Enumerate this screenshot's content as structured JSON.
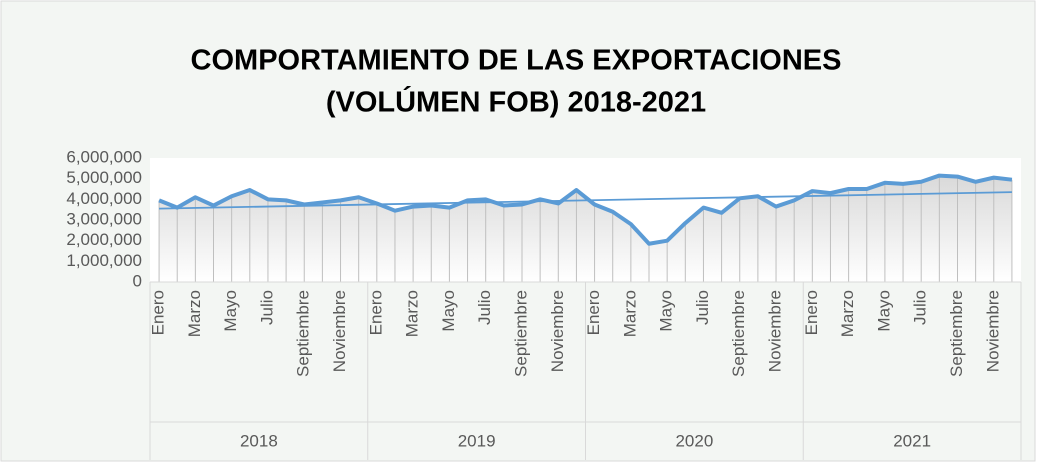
{
  "chart_data": {
    "type": "line",
    "title": [
      "COMPORTAMIENTO DE LAS EXPORTACIONES",
      "(VOLÚMEN FOB) 2018-2021"
    ],
    "categories": [
      "Enero",
      null,
      "Marzo",
      null,
      "Mayo",
      null,
      "Julio",
      null,
      "Septiembre",
      null,
      "Noviembre",
      null,
      "Enero",
      null,
      "Marzo",
      null,
      "Mayo",
      null,
      "Julio",
      null,
      "Septiembre",
      null,
      "Noviembre",
      null,
      "Enero",
      null,
      "Marzo",
      null,
      "Mayo",
      null,
      "Julio",
      null,
      "Septiembre",
      null,
      "Noviembre",
      null,
      "Enero",
      null,
      "Marzo",
      null,
      "Mayo",
      null,
      "Julio",
      null,
      "Septiembre",
      null,
      "Noviembre",
      null
    ],
    "groups": [
      "2018",
      "2019",
      "2020",
      "2021"
    ],
    "series": [
      {
        "color": "#5b9bd5",
        "values": [
          3950000,
          3600000,
          4100000,
          3700000,
          4150000,
          4450000,
          4000000,
          3950000,
          3750000,
          3850000,
          3950000,
          4100000,
          3800000,
          3450000,
          3650000,
          3700000,
          3600000,
          3950000,
          4000000,
          3700000,
          3750000,
          4000000,
          3800000,
          4450000,
          3750000,
          3400000,
          2800000,
          1850000,
          2000000,
          2850000,
          3600000,
          3350000,
          4050000,
          4150000,
          3650000,
          3950000,
          4400000,
          4300000,
          4500000,
          4500000,
          4800000,
          4750000,
          4850000,
          5150000,
          5100000,
          4850000,
          5050000,
          4950000
        ]
      }
    ],
    "trendline": [
      3550000,
      4350000
    ],
    "ylim": [
      0,
      6000000
    ],
    "yticks": [
      {
        "value": 0,
        "label": "0"
      },
      {
        "value": 1000000,
        "label": "1,000,000"
      },
      {
        "value": 2000000,
        "label": "2,000,000"
      },
      {
        "value": 3000000,
        "label": "3,000,000"
      },
      {
        "value": 4000000,
        "label": "4,000,000"
      },
      {
        "value": 5000000,
        "label": "5,000,000"
      },
      {
        "value": 6000000,
        "label": "6,000,000"
      }
    ]
  }
}
